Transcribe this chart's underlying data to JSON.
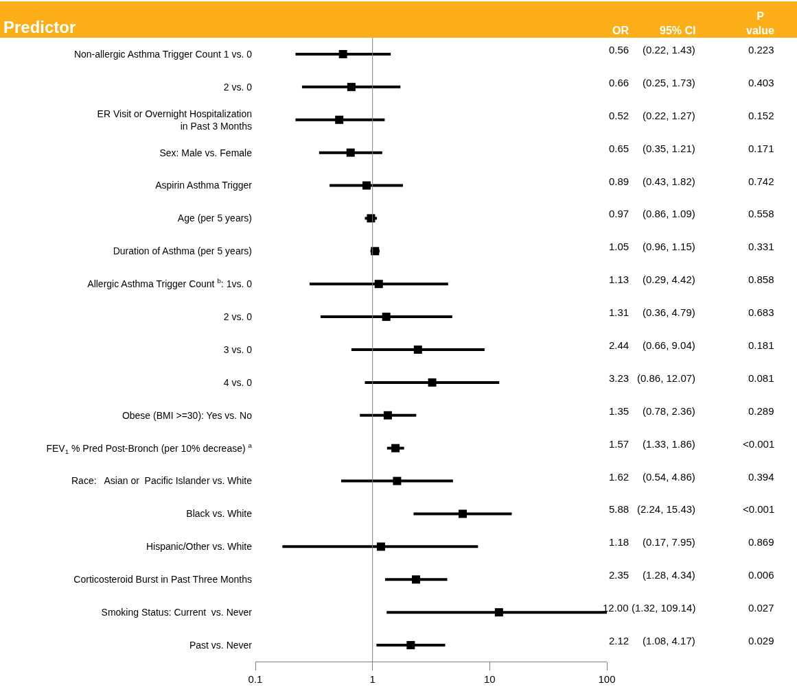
{
  "chart_data": {
    "type": "scatter",
    "title": "Predictor",
    "categories": [
      "Non-allergic Asthma Trigger Count 1 vs. 0",
      "2 vs. 0",
      "ER Visit or Overnight Hospitalization\nin Past 3 Months",
      "Sex: Male vs. Female",
      "Aspirin Asthma Trigger",
      "Age (per 5 years)",
      "Duration of Asthma (per 5 years)",
      "Allergic Asthma Trigger Count $^{b}$: 1vs. 0",
      "2 vs. 0",
      "3 vs. 0",
      "4 vs. 0",
      "Obese (BMI >=30): Yes vs. No",
      "FEV$_{1}$ % Pred Post-Bronch (per 10% decrease) $^{a}$",
      "Race:   Asian or  Pacific Islander vs. White",
      "Black vs. White",
      "Hispanic/Other vs. White",
      "Corticosteroid Burst in Past Three Months",
      "Smoking Status: Current  vs. Never",
      "Past vs. Never"
    ],
    "values": [
      0.56,
      0.66,
      0.52,
      0.65,
      0.89,
      0.97,
      1.05,
      1.13,
      1.31,
      2.44,
      3.23,
      1.35,
      1.57,
      1.62,
      5.88,
      1.18,
      2.35,
      12.0,
      2.12
    ],
    "errors": [
      [
        0.22,
        1.43
      ],
      [
        0.25,
        1.73
      ],
      [
        0.22,
        1.27
      ],
      [
        0.35,
        1.21
      ],
      [
        0.43,
        1.82
      ],
      [
        0.86,
        1.09
      ],
      [
        0.96,
        1.15
      ],
      [
        0.29,
        4.42
      ],
      [
        0.36,
        4.79
      ],
      [
        0.66,
        9.04
      ],
      [
        0.86,
        12.07
      ],
      [
        0.78,
        2.36
      ],
      [
        1.33,
        1.86
      ],
      [
        0.54,
        4.86
      ],
      [
        2.24,
        15.43
      ],
      [
        0.17,
        7.95
      ],
      [
        1.28,
        4.34
      ],
      [
        1.32,
        109.14
      ],
      [
        1.08,
        4.17
      ]
    ],
    "value_labels": [
      "0.56",
      "0.66",
      "0.52",
      "0.65",
      "0.89",
      "0.97",
      "1.05",
      "1.13",
      "1.31",
      "2.44",
      "3.23",
      "1.35",
      "1.57",
      "1.62",
      "5.88",
      "1.18",
      "2.35",
      "12.00",
      "2.12"
    ],
    "color": "#000000",
    "marker": "square",
    "log": "x",
    "legend": false,
    "orientation": "horizontal",
    "xlim": [
      0.1,
      100
    ],
    "xticks": [
      0.1,
      1,
      10,
      100
    ],
    "ref_lines": [
      {
        "axis": "x",
        "value": 1,
        "color": "#808080"
      }
    ],
    "annotations": [
      "OR",
      "95% CI",
      "P\nvalue",
      "(0.22, 1.43)",
      "0.223",
      "(0.25, 1.73)",
      "0.403",
      "(0.22, 1.27)",
      "0.152",
      "(0.35, 1.21)",
      "0.171",
      "(0.43, 1.82)",
      "0.742",
      "(0.86, 1.09)",
      "0.558",
      "(0.96, 1.15)",
      "0.331",
      "(0.29, 4.42)",
      "0.858",
      "(0.36, 4.79)",
      "0.683",
      "(0.66, 9.04)",
      "0.181",
      "(0.86, 12.07)",
      "0.081",
      "(0.78, 2.36)",
      "0.289",
      "(1.33, 1.86)",
      "<0.001",
      "(0.54, 4.86)",
      "0.394",
      "(2.24, 15.43)",
      "<0.001",
      "(0.17, 7.95)",
      "0.869",
      "(1.28, 4.34)",
      "0.006",
      "(1.32, 109.14)",
      "0.027",
      "(1.08, 4.17)",
      "0.029"
    ]
  }
}
